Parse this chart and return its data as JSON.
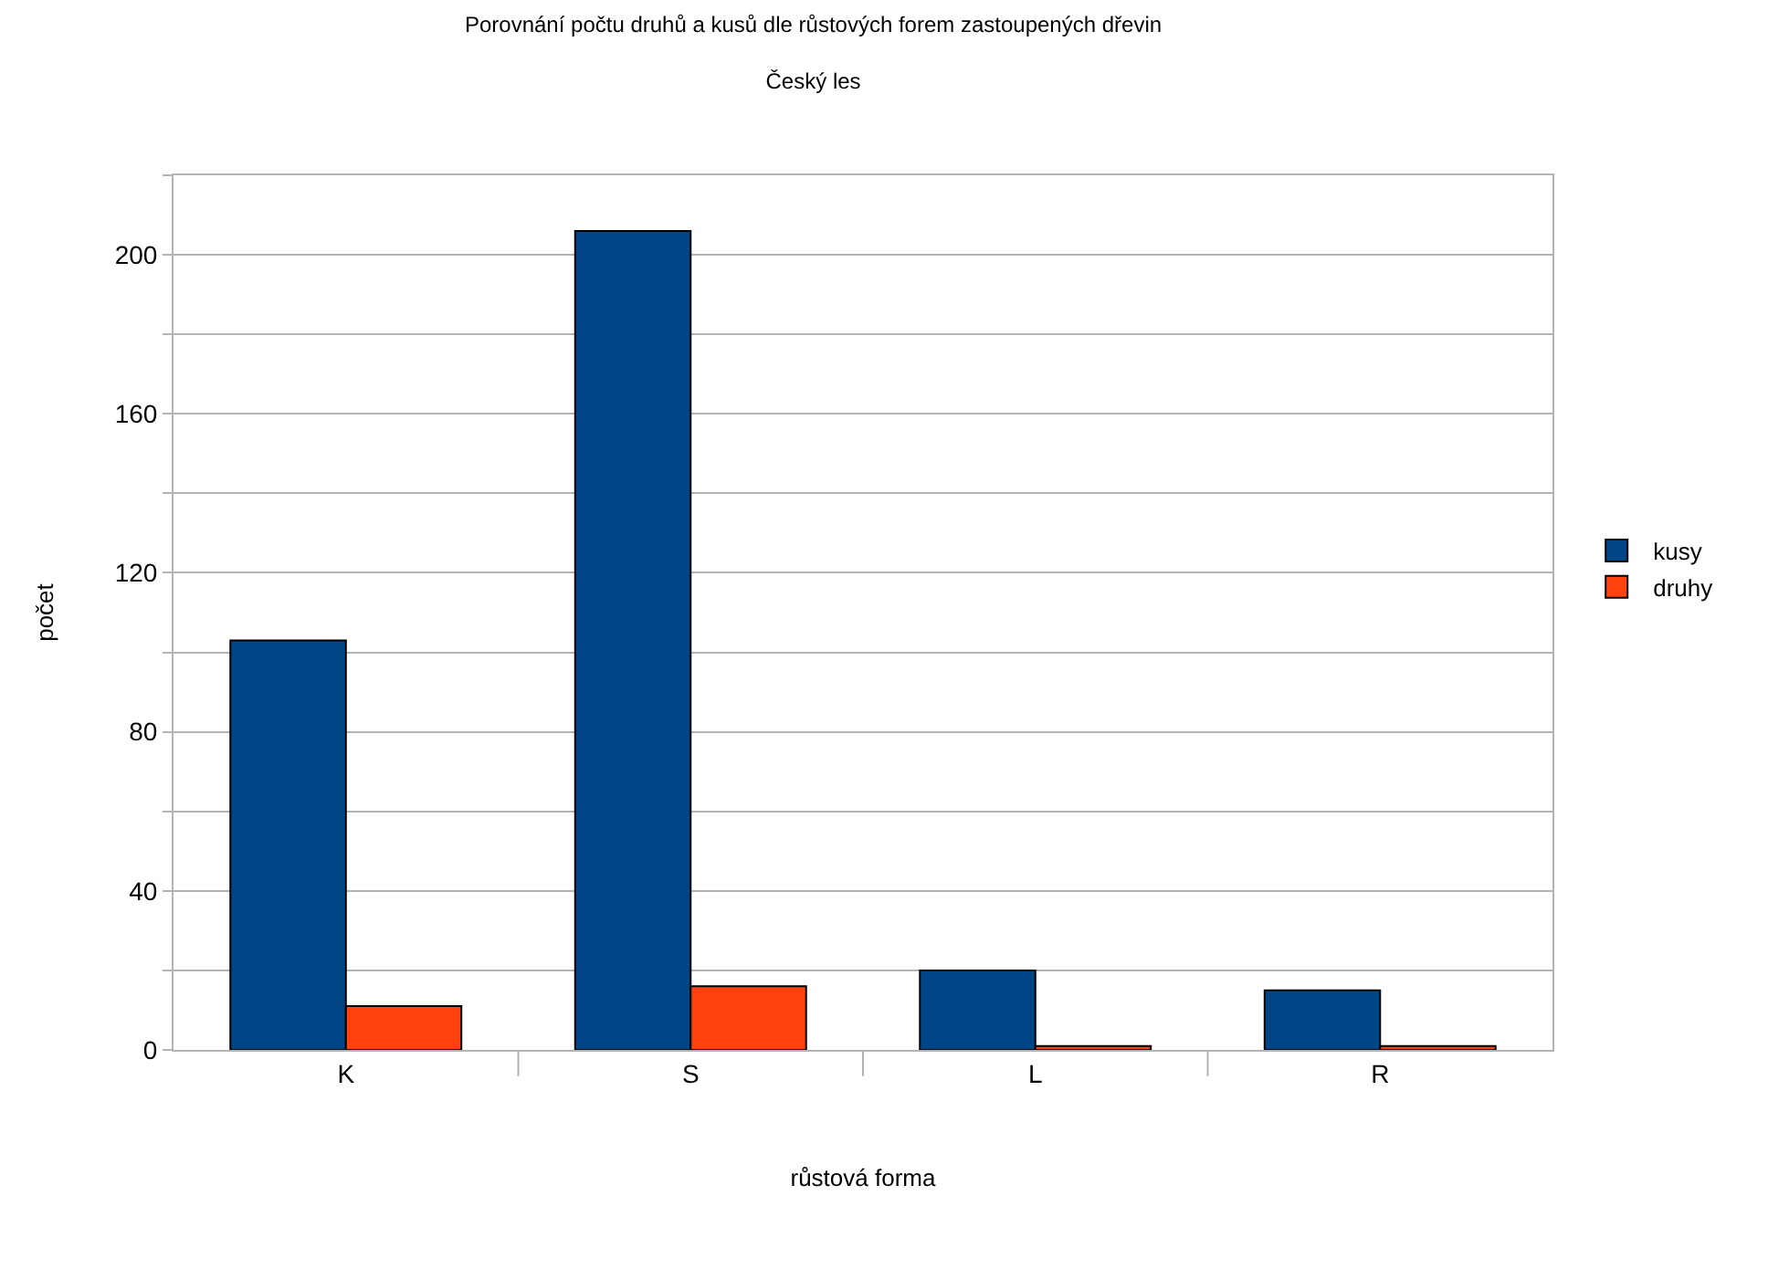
{
  "chart_data": {
    "type": "bar",
    "title": "Porovnání počtu druhů a kusů dle růstových forem zastoupených dřevin",
    "subtitle": "Český les",
    "xlabel": "růstová forma",
    "ylabel": "počet",
    "categories": [
      "K",
      "S",
      "L",
      "R"
    ],
    "series": [
      {
        "name": "kusy",
        "color": "#004586",
        "values": [
          103,
          206,
          20,
          15
        ]
      },
      {
        "name": "druhy",
        "color": "#ff420e",
        "values": [
          11,
          16,
          1,
          1
        ]
      }
    ],
    "ylim": [
      0,
      220
    ],
    "yticks": [
      0,
      {
        "value": 20,
        "label": null
      },
      40,
      {
        "value": 60,
        "label": null
      },
      80,
      {
        "value": 100,
        "label": null
      },
      120,
      {
        "value": 140,
        "label": null
      },
      160,
      {
        "value": 180,
        "label": null
      },
      200,
      {
        "value": 220,
        "label": null
      }
    ],
    "grid": "y",
    "legend": "right"
  }
}
